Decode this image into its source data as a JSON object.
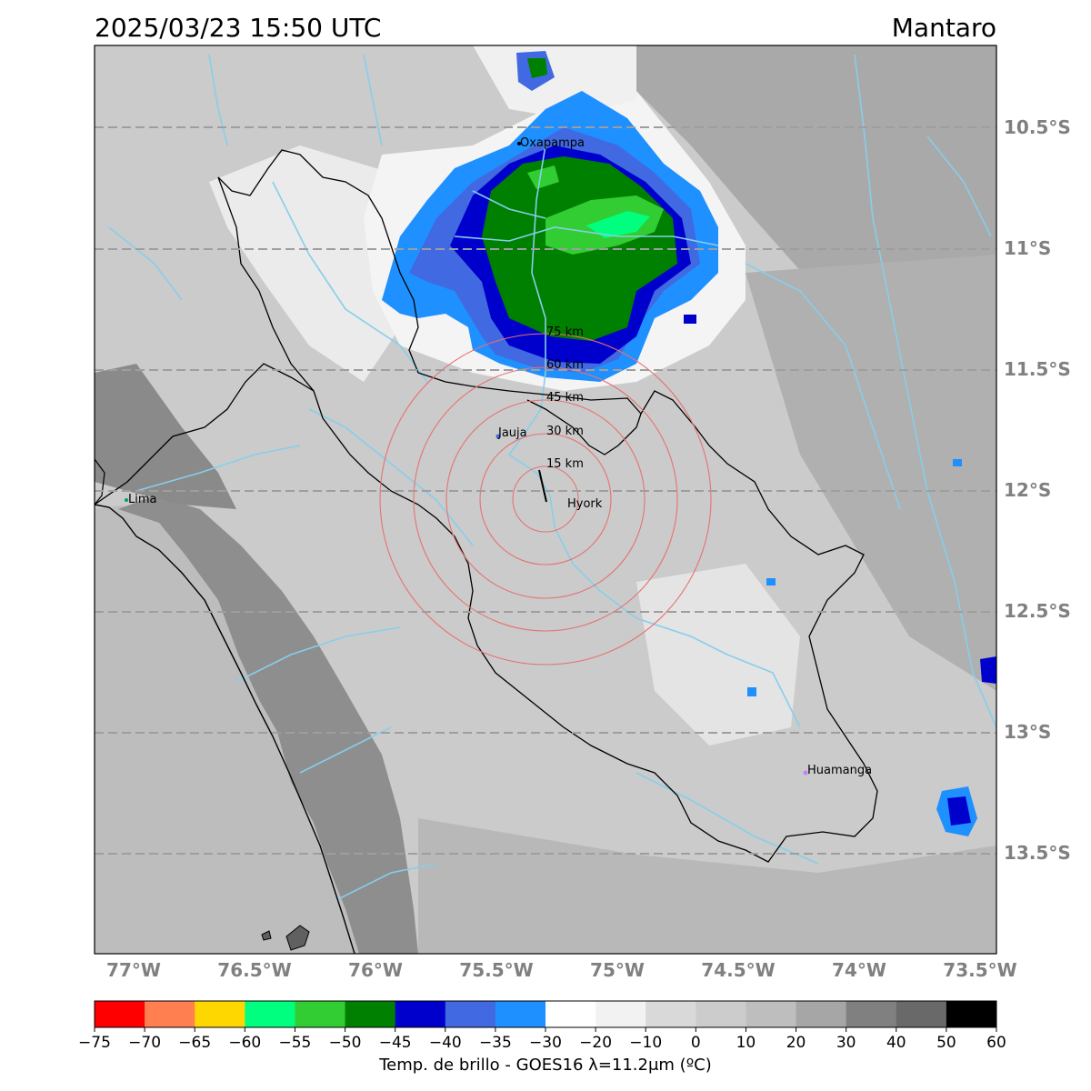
{
  "header": {
    "timestamp": "2025/03/23 15:50 UTC",
    "region": "Mantaro"
  },
  "map": {
    "lat_labels": [
      "10.5°S",
      "11°S",
      "11.5°S",
      "12°S",
      "12.5°S",
      "13°S",
      "13.5°S"
    ],
    "lon_labels": [
      "77°W",
      "76.5°W",
      "76°W",
      "75.5°W",
      "75°W",
      "74.5°W",
      "74°W",
      "73.5°W"
    ],
    "cities": [
      "Oxapampa",
      "Jauja",
      "Hyork",
      "Lima",
      "Huamanga"
    ],
    "range_rings": [
      "15 km",
      "30 km",
      "45 km",
      "60 km",
      "75 km"
    ],
    "colors": {
      "river": "#87ceeb",
      "ring": "#e57373",
      "grid": "#9e9e9e",
      "tick_label": "#808080"
    }
  },
  "colorbar": {
    "ticks": [
      "−75",
      "−70",
      "−65",
      "−60",
      "−55",
      "−50",
      "−45",
      "−40",
      "−35",
      "−30",
      "−20",
      "−10",
      "0",
      "10",
      "20",
      "30",
      "40",
      "50",
      "60"
    ],
    "colors": [
      "#ff0000",
      "#ff7f50",
      "#ffd700",
      "#00ff7f",
      "#32cd32",
      "#008000",
      "#0000cd",
      "#4169e1",
      "#1e90ff",
      "#ffffff",
      "#f2f2f2",
      "#d9d9d9",
      "#cccccc",
      "#bebebe",
      "#a6a6a6",
      "#808080",
      "#696969",
      "#000000"
    ],
    "label": "Temp. de brillo - GOES16 λ=11.2μm (ºC)"
  }
}
